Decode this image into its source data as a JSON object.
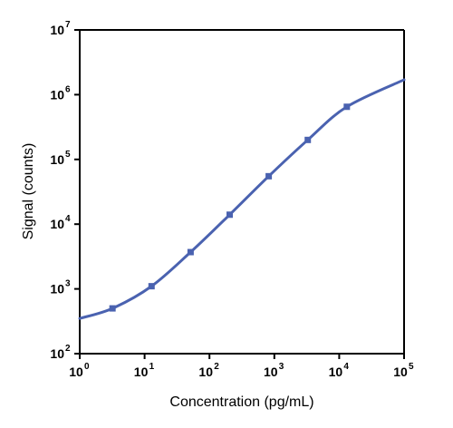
{
  "chart_data": {
    "type": "scatter",
    "title": "",
    "xlabel": "Concentration (pg/mL)",
    "ylabel": "Signal (counts)",
    "x_scale": "log",
    "y_scale": "log",
    "xlim": [
      1,
      100000
    ],
    "ylim": [
      100,
      10000000
    ],
    "x_ticks": [
      {
        "base": "10",
        "exp": "0",
        "value": 1
      },
      {
        "base": "10",
        "exp": "1",
        "value": 10
      },
      {
        "base": "10",
        "exp": "2",
        "value": 100
      },
      {
        "base": "10",
        "exp": "3",
        "value": 1000
      },
      {
        "base": "10",
        "exp": "4",
        "value": 10000
      },
      {
        "base": "10",
        "exp": "5",
        "value": 100000
      }
    ],
    "y_ticks": [
      {
        "base": "10",
        "exp": "2",
        "value": 100
      },
      {
        "base": "10",
        "exp": "3",
        "value": 1000
      },
      {
        "base": "10",
        "exp": "4",
        "value": 10000
      },
      {
        "base": "10",
        "exp": "5",
        "value": 100000
      },
      {
        "base": "10",
        "exp": "6",
        "value": 1000000
      },
      {
        "base": "10",
        "exp": "7",
        "value": 10000000
      }
    ],
    "grid": false,
    "legend": "none",
    "series": [
      {
        "points": [
          {
            "x": 3.2,
            "y": 500
          },
          {
            "x": 12.8,
            "y": 1100
          },
          {
            "x": 51.2,
            "y": 3700
          },
          {
            "x": 204.8,
            "y": 14000
          },
          {
            "x": 819.2,
            "y": 55000
          },
          {
            "x": 3276.8,
            "y": 200000
          },
          {
            "x": 13107.2,
            "y": 650000
          }
        ],
        "fit_curve": [
          {
            "x": 1,
            "y": 350
          },
          {
            "x": 3.2,
            "y": 500
          },
          {
            "x": 12.8,
            "y": 1100
          },
          {
            "x": 51.2,
            "y": 3700
          },
          {
            "x": 204.8,
            "y": 14000
          },
          {
            "x": 819.2,
            "y": 55000
          },
          {
            "x": 3276.8,
            "y": 200000
          },
          {
            "x": 13107.2,
            "y": 650000
          },
          {
            "x": 100000,
            "y": 1700000
          }
        ],
        "color": "#4a62b0"
      }
    ]
  }
}
